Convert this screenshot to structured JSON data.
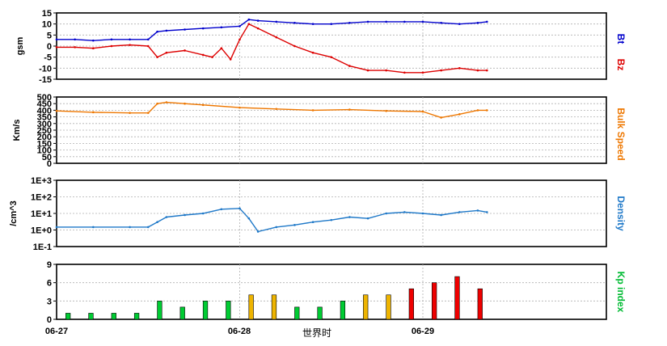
{
  "chart_data": [
    {
      "panel": "magnetic-field",
      "type": "line",
      "ylabel": "gsm",
      "yticks": [
        "15",
        "10",
        "5",
        "0",
        "-5",
        "-10",
        "-15"
      ],
      "ylim": [
        -15,
        15
      ],
      "series": [
        {
          "name": "Bt",
          "color": "#0000cc",
          "x": [
            0,
            0.1,
            0.2,
            0.3,
            0.4,
            0.5,
            0.55,
            0.6,
            0.7,
            0.8,
            0.9,
            1.0,
            1.05,
            1.1,
            1.2,
            1.3,
            1.4,
            1.5,
            1.6,
            1.7,
            1.8,
            1.9,
            2.0,
            2.1,
            2.2,
            2.3,
            2.35
          ],
          "y": [
            3,
            3,
            2.5,
            3,
            3,
            3,
            6.5,
            7,
            7.5,
            8,
            8.5,
            9,
            12,
            11.5,
            11,
            10.5,
            10,
            10,
            10.5,
            11,
            11,
            11,
            11,
            10.5,
            10,
            10.5,
            11
          ]
        },
        {
          "name": "Bz",
          "color": "#dd0000",
          "x": [
            0,
            0.1,
            0.2,
            0.3,
            0.4,
            0.5,
            0.55,
            0.6,
            0.7,
            0.8,
            0.85,
            0.9,
            0.95,
            1.0,
            1.05,
            1.1,
            1.2,
            1.3,
            1.4,
            1.5,
            1.6,
            1.7,
            1.8,
            1.9,
            2.0,
            2.1,
            2.2,
            2.3,
            2.35
          ],
          "y": [
            -0.5,
            -0.5,
            -1,
            0,
            0.5,
            0,
            -5,
            -3,
            -2,
            -4,
            -5,
            -1,
            -6,
            3,
            10,
            8,
            4,
            0,
            -3,
            -5,
            -9,
            -11,
            -11,
            -12,
            -12,
            -11,
            -10,
            -11,
            -11
          ]
        }
      ]
    },
    {
      "panel": "bulk-speed",
      "type": "line",
      "ylabel": "Km/s",
      "yticks": [
        "500",
        "450",
        "400",
        "350",
        "300",
        "250",
        "200",
        "150",
        "100",
        "50",
        "0"
      ],
      "ylim": [
        0,
        500
      ],
      "series": [
        {
          "name": "Bulk Speed",
          "color": "#ee7700",
          "x": [
            0,
            0.2,
            0.4,
            0.5,
            0.55,
            0.6,
            0.7,
            0.8,
            1.0,
            1.2,
            1.4,
            1.6,
            1.8,
            2.0,
            2.1,
            2.2,
            2.3,
            2.35
          ],
          "y": [
            395,
            385,
            380,
            380,
            450,
            460,
            450,
            440,
            420,
            410,
            400,
            405,
            395,
            390,
            345,
            370,
            400,
            400
          ]
        }
      ]
    },
    {
      "panel": "density",
      "type": "scatter",
      "ylabel": "/cm^3",
      "yscale": "log",
      "yticks": [
        "1E+3",
        "1E+2",
        "1E+1",
        "1E+0",
        "1E-1"
      ],
      "ylim": [
        0.1,
        1000
      ],
      "series": [
        {
          "name": "Density",
          "color": "#1e78c8",
          "x": [
            0,
            0.2,
            0.4,
            0.5,
            0.55,
            0.6,
            0.7,
            0.8,
            0.9,
            1.0,
            1.05,
            1.1,
            1.2,
            1.3,
            1.4,
            1.5,
            1.6,
            1.7,
            1.8,
            1.9,
            2.0,
            2.1,
            2.2,
            2.3,
            2.35
          ],
          "y": [
            1.5,
            1.5,
            1.5,
            1.5,
            3,
            6,
            8,
            10,
            18,
            20,
            5,
            0.8,
            1.5,
            2,
            3,
            4,
            6,
            5,
            10,
            12,
            10,
            8,
            12,
            15,
            12
          ]
        }
      ]
    },
    {
      "panel": "kp-index",
      "type": "bar",
      "ylabel": "",
      "yticks": [
        "9",
        "6",
        "3",
        "0"
      ],
      "ylim": [
        0,
        9
      ],
      "bar_width_days": 0.025,
      "bars": {
        "x": [
          0.0625,
          0.1875,
          0.3125,
          0.4375,
          0.5625,
          0.6875,
          0.8125,
          0.9375,
          1.0625,
          1.1875,
          1.3125,
          1.4375,
          1.5625,
          1.6875,
          1.8125,
          1.9375,
          2.0625,
          2.1875,
          2.3125,
          2.4375
        ],
        "values": [
          1,
          1,
          1,
          1,
          3,
          2,
          3,
          3,
          4,
          4,
          2,
          2,
          3,
          4,
          4,
          5,
          6,
          7,
          5,
          0
        ],
        "colors": [
          "#00cc33",
          "#00cc33",
          "#00cc33",
          "#00cc33",
          "#00cc33",
          "#00cc33",
          "#00cc33",
          "#00cc33",
          "#eeb400",
          "#eeb400",
          "#00cc33",
          "#00cc33",
          "#00cc33",
          "#eeb400",
          "#eeb400",
          "#ee0000",
          "#ee0000",
          "#ee0000",
          "#ee0000",
          "#ee0000"
        ],
        "visible": [
          true,
          true,
          true,
          true,
          true,
          true,
          true,
          true,
          true,
          true,
          true,
          true,
          true,
          true,
          true,
          true,
          true,
          true,
          true,
          false
        ]
      }
    }
  ],
  "labels": {
    "bt": "Bt",
    "bz": "Bz",
    "speed": "Bulk Speed",
    "density": "Density",
    "kp": "Kp index",
    "xlabel": "世界时",
    "x_ticks": [
      "06-27",
      "06-28",
      "06-29"
    ]
  },
  "colors": {
    "bt": "#0000cc",
    "bz": "#dd0000",
    "speed": "#ee7700",
    "density": "#1e78c8",
    "kp": "#00bb33"
  }
}
